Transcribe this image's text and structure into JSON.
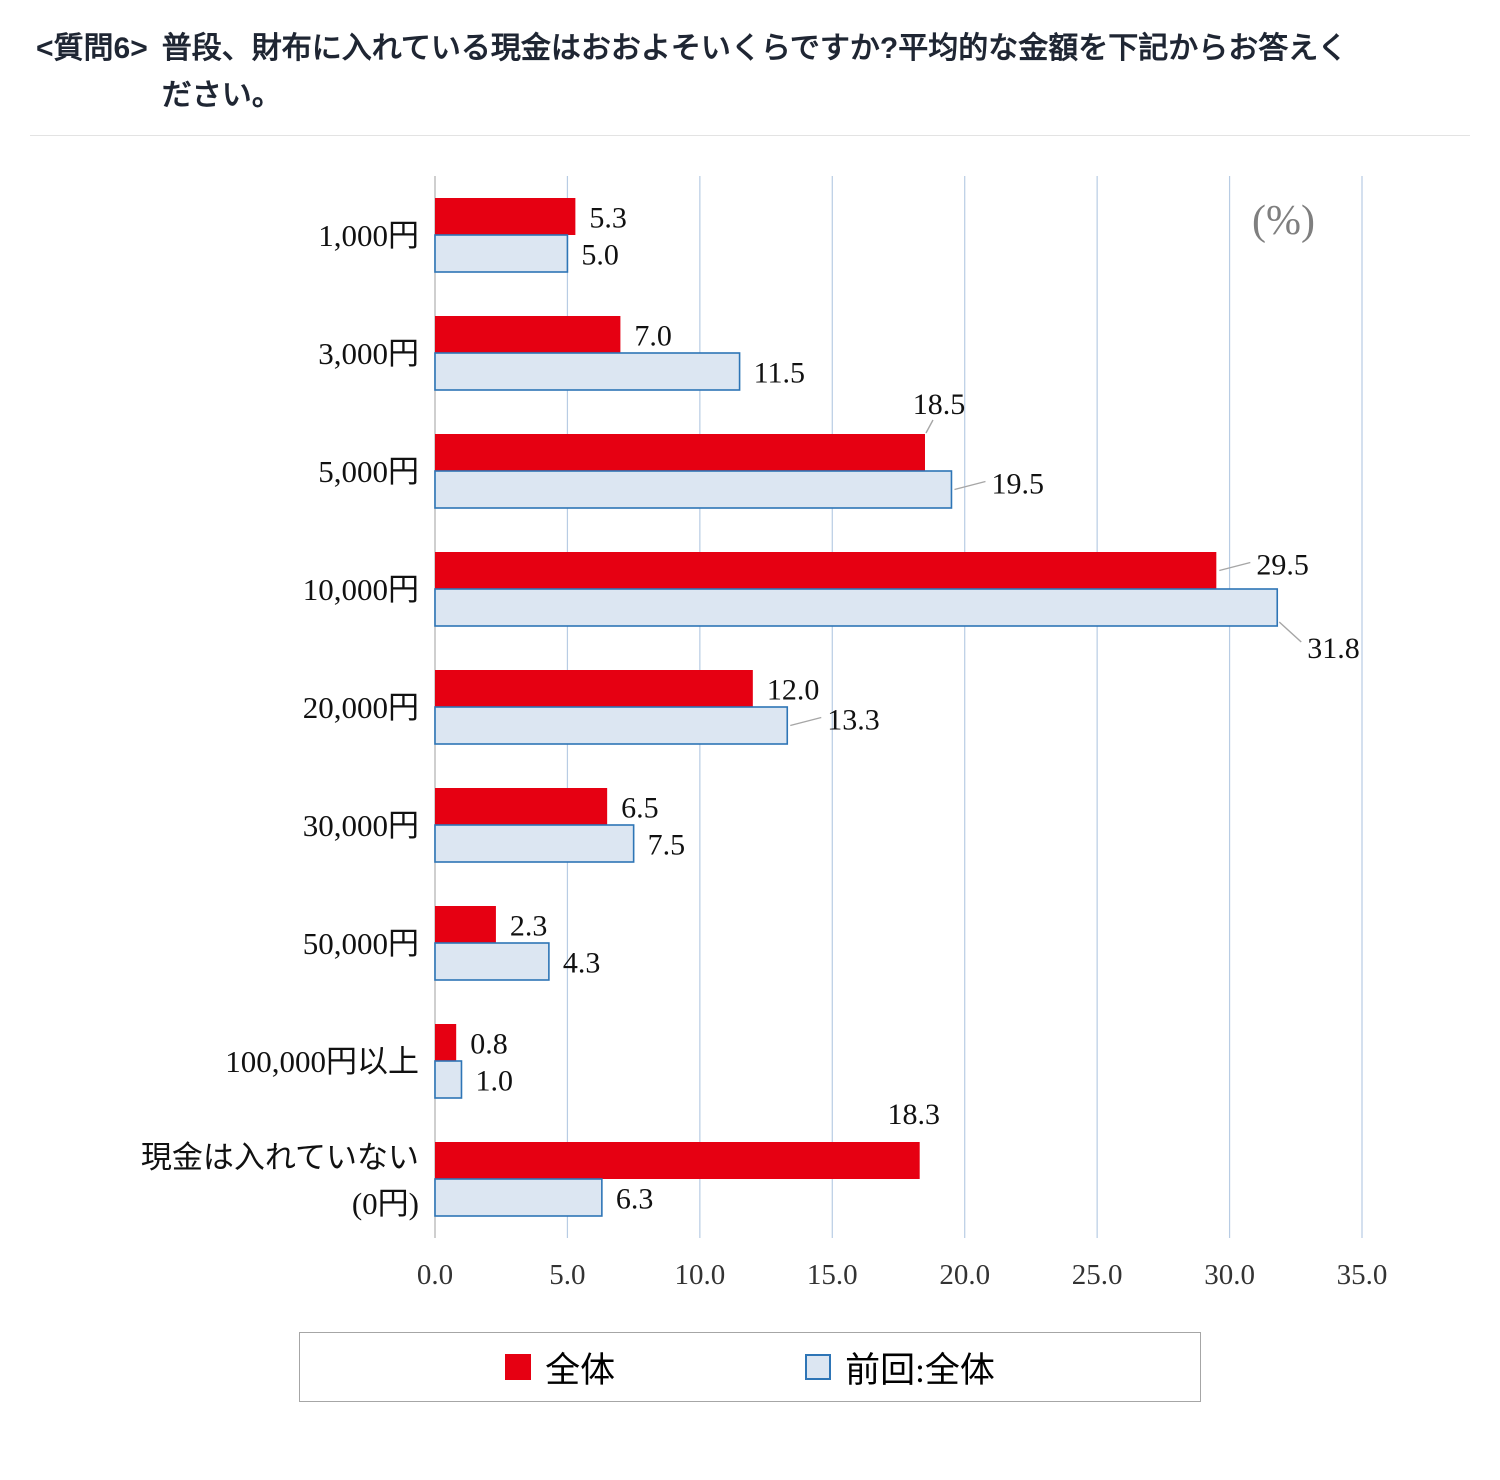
{
  "title": {
    "prefix": "<質問6>",
    "text": "普段、財布に入れている現金はおおよそいくらですか?平均的な金額を下記からお答えください。"
  },
  "chart_data": {
    "type": "bar",
    "orientation": "horizontal",
    "unit_label": "(%)",
    "categories": [
      "1,000円",
      "3,000円",
      "5,000円",
      "10,000円",
      "20,000円",
      "30,000円",
      "50,000円",
      "100,000円以上",
      "現金は入れていない\n(0円)"
    ],
    "series": [
      {
        "name": "全体",
        "color": "#e60012",
        "values": [
          5.3,
          7.0,
          18.5,
          29.5,
          12.0,
          6.5,
          2.3,
          0.8,
          18.3
        ],
        "label_pos": [
          "end",
          "end",
          "above-leader",
          "leader",
          "end",
          "end",
          "end",
          "end",
          "above"
        ]
      },
      {
        "name": "前回:全体",
        "color": "#dce6f2",
        "border": "#2e75b6",
        "values": [
          5.0,
          11.5,
          19.5,
          31.8,
          13.3,
          7.5,
          4.3,
          1.0,
          6.3
        ],
        "label_pos": [
          "end",
          "end",
          "leader",
          "below",
          "leader",
          "end",
          "end",
          "end",
          "end"
        ]
      }
    ],
    "x_axis": {
      "min": 0,
      "max": 35,
      "step": 5,
      "tick_labels": [
        "0.0",
        "5.0",
        "10.0",
        "15.0",
        "20.0",
        "25.0",
        "30.0",
        "35.0"
      ]
    },
    "grid_color": "#b8cce4",
    "axis_color": "#bfbfbf",
    "leader_color": "#a6a6a6",
    "gridlines": true,
    "legend_position": "bottom"
  }
}
